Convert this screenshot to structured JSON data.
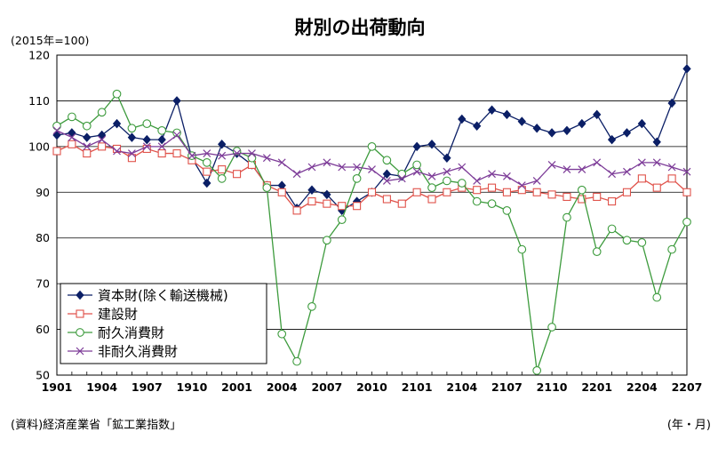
{
  "chart_data": {
    "type": "line",
    "title": "財別の出荷動向",
    "unit_label": "(2015年=100)",
    "source": "(資料)経済産業省「鉱工業指数」",
    "x_unit": "(年・月)",
    "ylim": [
      50,
      120
    ],
    "yticks": [
      50,
      60,
      70,
      80,
      90,
      100,
      110,
      120
    ],
    "grid": true,
    "legend_position": "bottom-left",
    "x": [
      "1901",
      "1902",
      "1903",
      "1904",
      "1905",
      "1906",
      "1907",
      "1908",
      "1909",
      "1910",
      "1911",
      "1912",
      "2001",
      "2002",
      "2003",
      "2004",
      "2005",
      "2006",
      "2007",
      "2008",
      "2009",
      "2010",
      "2011",
      "2012",
      "2101",
      "2102",
      "2103",
      "2104",
      "2105",
      "2106",
      "2107",
      "2108",
      "2109",
      "2110",
      "2111",
      "2112",
      "2201",
      "2202",
      "2203",
      "2204",
      "2205",
      "2206",
      "2207"
    ],
    "x_tick_labels": [
      "1901",
      "1904",
      "1907",
      "1910",
      "2001",
      "2004",
      "2007",
      "2010",
      "2101",
      "2104",
      "2107",
      "2110",
      "2201",
      "2204",
      "2207"
    ],
    "series": [
      {
        "name": "資本財(除く輸送機械)",
        "color": "#0b1f66",
        "marker": "diamond",
        "values": [
          102.5,
          103,
          102,
          102.5,
          105,
          102,
          101.5,
          101.5,
          110,
          97.5,
          92,
          100.5,
          98.5,
          96,
          91.5,
          91.5,
          86.5,
          90.5,
          89.5,
          86,
          88,
          90,
          94,
          93.5,
          100,
          100.5,
          97.5,
          106,
          104.5,
          108,
          107,
          105.5,
          104,
          103,
          103.5,
          105,
          107,
          101.5,
          103,
          105,
          101,
          109.5,
          117
        ]
      },
      {
        "name": "建設財",
        "color": "#e0524a",
        "marker": "square",
        "values": [
          99,
          100.5,
          98.5,
          100,
          99.5,
          97.5,
          99.5,
          98.5,
          98.5,
          97,
          94.5,
          95,
          94,
          96,
          91.5,
          90,
          86,
          88,
          87.5,
          87,
          87,
          90,
          88.5,
          87.5,
          90,
          88.5,
          90,
          91,
          90.5,
          91,
          90,
          90.5,
          90,
          89.5,
          89,
          88.5,
          89,
          88,
          90,
          93,
          91,
          93,
          90
        ]
      },
      {
        "name": "耐久消費財",
        "color": "#3d9b3d",
        "marker": "circle",
        "values": [
          104.5,
          106.5,
          104.5,
          107.5,
          111.5,
          104,
          105,
          103.5,
          103,
          98,
          96.5,
          93,
          99,
          97.5,
          91,
          59,
          53,
          65,
          79.5,
          84,
          93,
          100,
          97,
          94,
          96,
          91,
          92.5,
          92,
          88,
          87.5,
          86,
          77.5,
          51,
          60.5,
          84.5,
          90.5,
          77,
          82,
          79.5,
          79,
          67,
          77.5,
          83.5
        ]
      },
      {
        "name": "非耐久消費財",
        "color": "#7d3c98",
        "marker": "x",
        "values": [
          103.5,
          102,
          100,
          101.5,
          99,
          98.5,
          100,
          100,
          102.5,
          98,
          98.5,
          98,
          98.5,
          98.5,
          97.5,
          96.5,
          94,
          95.5,
          96.5,
          95.5,
          95.5,
          95,
          92.5,
          93,
          94.5,
          93.5,
          94.5,
          95.5,
          92.5,
          94,
          93.5,
          91.5,
          92.5,
          96,
          95,
          95,
          96.5,
          94,
          94.5,
          96.5,
          96.5,
          95.5,
          94.5
        ]
      }
    ]
  }
}
